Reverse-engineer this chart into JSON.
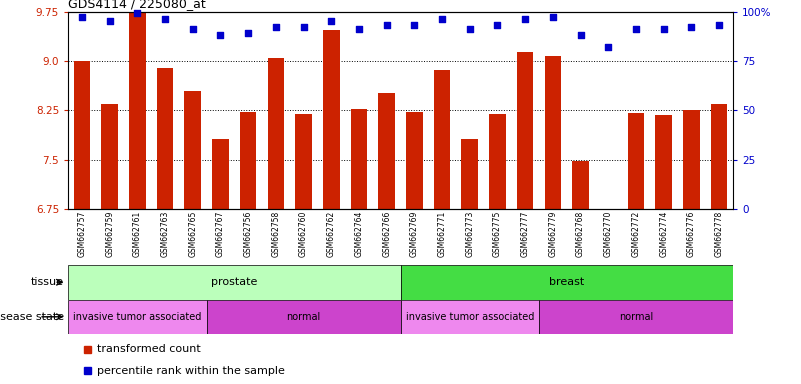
{
  "title": "GDS4114 / 225080_at",
  "samples": [
    "GSM662757",
    "GSM662759",
    "GSM662761",
    "GSM662763",
    "GSM662765",
    "GSM662767",
    "GSM662756",
    "GSM662758",
    "GSM662760",
    "GSM662762",
    "GSM662764",
    "GSM662766",
    "GSM662769",
    "GSM662771",
    "GSM662773",
    "GSM662775",
    "GSM662777",
    "GSM662779",
    "GSM662768",
    "GSM662770",
    "GSM662772",
    "GSM662774",
    "GSM662776",
    "GSM662778"
  ],
  "bar_values": [
    9.0,
    8.35,
    9.75,
    8.9,
    8.55,
    7.82,
    8.22,
    9.05,
    8.19,
    9.47,
    8.27,
    8.52,
    8.22,
    8.87,
    7.82,
    8.19,
    9.14,
    9.07,
    7.48,
    6.67,
    8.21,
    8.18,
    8.25,
    8.35
  ],
  "dot_values": [
    97,
    95,
    99,
    96,
    91,
    88,
    89,
    92,
    92,
    95,
    91,
    93,
    93,
    96,
    91,
    93,
    96,
    97,
    88,
    82,
    91,
    91,
    92,
    93
  ],
  "bar_color": "#cc2200",
  "dot_color": "#0000cc",
  "ylim_left": [
    6.75,
    9.75
  ],
  "ylim_right": [
    0,
    100
  ],
  "yticks_left": [
    6.75,
    7.5,
    8.25,
    9.0,
    9.75
  ],
  "yticks_right": [
    0,
    25,
    50,
    75,
    100
  ],
  "grid_values": [
    7.5,
    8.25,
    9.0
  ],
  "tissue_groups": [
    {
      "label": "prostate",
      "start": 0,
      "end": 11,
      "color": "#bbffbb"
    },
    {
      "label": "breast",
      "start": 12,
      "end": 23,
      "color": "#44dd44"
    }
  ],
  "disease_groups": [
    {
      "label": "invasive tumor associated",
      "start": 0,
      "end": 4,
      "color": "#ee88ee"
    },
    {
      "label": "normal",
      "start": 5,
      "end": 11,
      "color": "#cc44cc"
    },
    {
      "label": "invasive tumor associated",
      "start": 12,
      "end": 16,
      "color": "#ee88ee"
    },
    {
      "label": "normal",
      "start": 17,
      "end": 23,
      "color": "#cc44cc"
    }
  ],
  "legend_items": [
    {
      "label": "transformed count",
      "color": "#cc2200"
    },
    {
      "label": "percentile rank within the sample",
      "color": "#0000cc"
    }
  ],
  "bar_width": 0.6,
  "fig_width": 8.01,
  "fig_height": 3.84,
  "dpi": 100
}
